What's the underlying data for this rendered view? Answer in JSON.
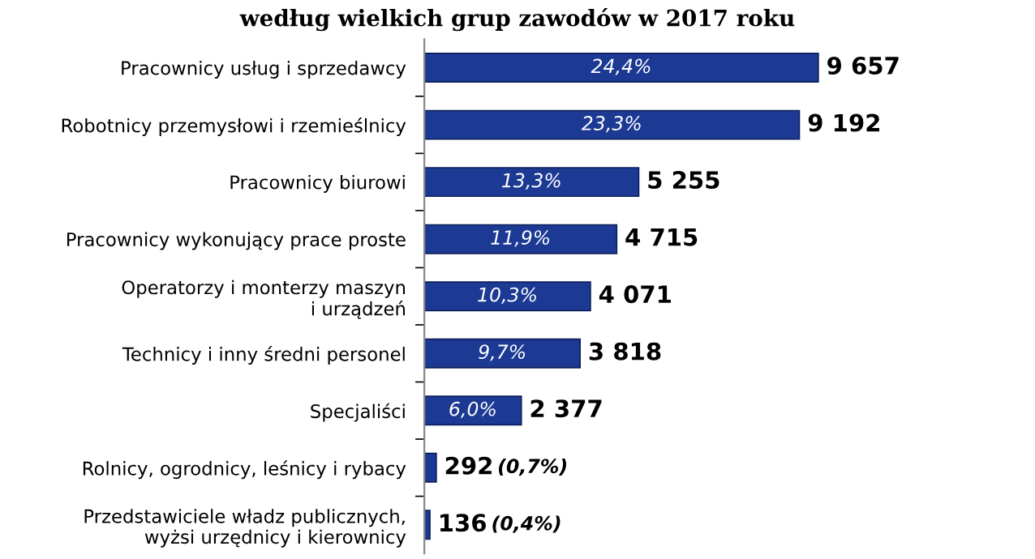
{
  "chart_data": {
    "type": "bar",
    "orientation": "horizontal",
    "title": "według wielkich grup zawodów w 2017 roku",
    "categories": [
      "Pracownicy usług i sprzedawcy",
      "Robotnicy przemysłowi i rzemieślnicy",
      "Pracownicy biurowi",
      "Pracownicy wykonujący prace proste",
      "Operatorzy i monterzy maszyn\ni urządzeń",
      "Technicy i inny średni personel",
      "Specjaliści",
      "Rolnicy, ogrodnicy, leśnicy i rybacy",
      "Przedstawiciele władz publicznych,\nwyżsi urzędnicy i kierownicy"
    ],
    "values": [
      9657,
      9192,
      5255,
      4715,
      4071,
      3818,
      2377,
      292,
      136
    ],
    "value_labels": [
      "9 657",
      "9 192",
      "5 255",
      "4 715",
      "4 071",
      "3 818",
      "2 377",
      "292",
      "136"
    ],
    "color": "#1c3a94",
    "annotations": [
      "24,4%",
      "23,3%",
      "13,3%",
      "11,9%",
      "10,3%",
      "9,7%",
      "6,0%",
      "(0,7%)",
      "(0,4%)"
    ],
    "grid": false,
    "legend": false
  }
}
